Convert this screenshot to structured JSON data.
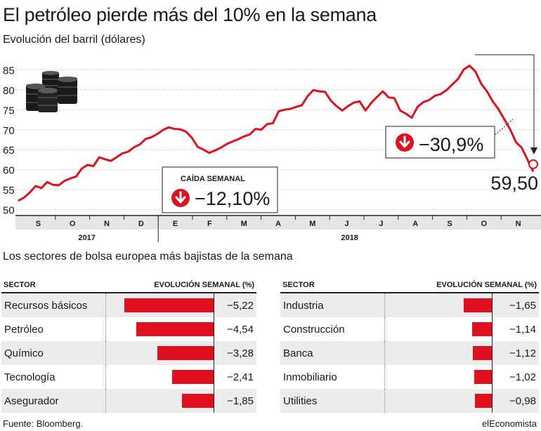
{
  "header": {
    "title": "El petróleo pierde más del 10% en la semana",
    "subtitle": "Evolución del barril (dólares)"
  },
  "chart_data": {
    "type": "line",
    "ylim": [
      48,
      87
    ],
    "yticks": [
      "50",
      "55",
      "60",
      "65",
      "70",
      "75",
      "80",
      "85"
    ],
    "months": [
      "S",
      "O",
      "N",
      "D",
      "E",
      "F",
      "M",
      "A",
      "M",
      "J",
      "J",
      "A",
      "S",
      "O",
      "N"
    ],
    "years": [
      "2017",
      "2018"
    ],
    "series": [
      {
        "values": [
          52.2,
          53,
          54.3,
          55.9,
          55.4,
          56.9,
          56.2,
          56.1,
          57.2,
          57.8,
          58.3,
          60.3,
          61.2,
          60.9,
          63.1,
          62.6,
          62.2,
          63.1,
          64.1,
          64.5,
          65.6,
          66.3,
          67.7,
          68.1,
          68.9,
          69.9,
          70.6,
          70.2,
          70.1,
          69.5,
          68.0,
          65.7,
          65.0,
          64.2,
          64.8,
          65.5,
          66.4,
          67.0,
          67.6,
          68.3,
          68.8,
          70.2,
          70.0,
          71.4,
          71.6,
          74.6,
          75.0,
          75.2,
          75.7,
          76.1,
          78.4,
          79.9,
          79.6,
          79.5,
          77.3,
          75.9,
          74.8,
          75.9,
          76.8,
          77.1,
          74.8,
          76.7,
          78.2,
          79.6,
          78.1,
          77.9,
          74.8,
          74.0,
          73.0,
          75.7,
          76.9,
          77.4,
          78.5,
          78.9,
          79.9,
          81.3,
          82.7,
          85.1,
          86.0,
          84.6,
          81.5,
          79.6,
          77.1,
          75.1,
          72.6,
          70.1,
          66.9,
          65.5,
          62.5,
          59.5
        ]
      }
    ],
    "annotations": {
      "weekly_label": "CAÍDA SEMANAL",
      "weekly_value": "−12,10%",
      "drop_value": "−30,9%",
      "last_value": "59,50"
    }
  },
  "colors": {
    "accent": "#e0101f",
    "shade": "#ececec"
  },
  "sectors": {
    "title": "Los sectores de bolsa europea más bajistas de la semana",
    "col_sector": "SECTOR",
    "col_evolution": "EVOLUCIÓN SEMANAL (%)",
    "left": [
      {
        "name": "Recursos básicos",
        "value": -5.22,
        "label": "−5,22"
      },
      {
        "name": "Petróleo",
        "value": -4.54,
        "label": "−4,54"
      },
      {
        "name": "Químico",
        "value": -3.28,
        "label": "−3,28"
      },
      {
        "name": "Tecnología",
        "value": -2.41,
        "label": "−2,41"
      },
      {
        "name": "Asegurador",
        "value": -1.85,
        "label": "−1,85"
      }
    ],
    "right": [
      {
        "name": "Industria",
        "value": -1.65,
        "label": "−1,65"
      },
      {
        "name": "Construcción",
        "value": -1.14,
        "label": "−1,14"
      },
      {
        "name": "Banca",
        "value": -1.12,
        "label": "−1,12"
      },
      {
        "name": "Inmobiliario",
        "value": -1.02,
        "label": "−1,02"
      },
      {
        "name": "Utilities",
        "value": -0.98,
        "label": "−0,98"
      }
    ]
  },
  "footer": {
    "source": "Fuente: Bloomberg.",
    "brand": "elEconomista"
  }
}
